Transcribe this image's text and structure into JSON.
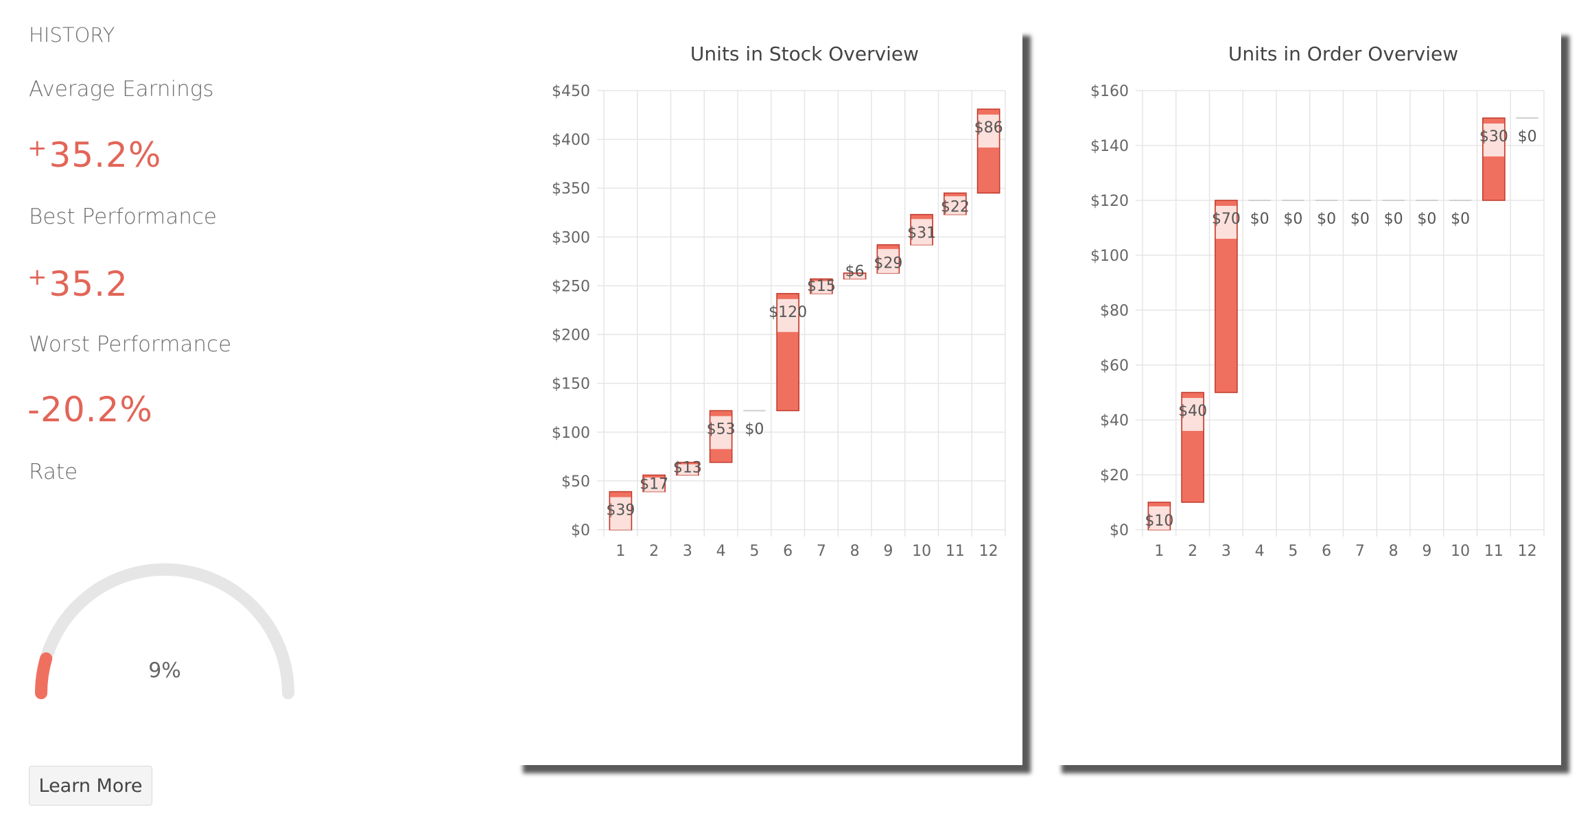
{
  "sidebar": {
    "history_label": "HISTORY",
    "avg_earnings_label": "Average Earnings",
    "avg_earnings_sign": "+",
    "avg_earnings_value": "35.2%",
    "best_performance_label": "Best Performance",
    "best_performance_sign": "+",
    "best_performance_value": "35.2",
    "worst_performance_label": "Worst Performance",
    "worst_performance_value": "-20.2%",
    "rate_label": "Rate",
    "rate_value": 9,
    "rate_text": "9%",
    "learn_more_label": "Learn More"
  },
  "colors": {
    "accent": "#e26558",
    "bar_fill": "#f07060",
    "bar_stroke": "#c0392b",
    "bar_light": "#fbe0dc",
    "gauge_track": "#e6e6e6"
  },
  "chart_data": [
    {
      "type": "bar",
      "subtype": "waterfall",
      "title": "Units in Stock Overview",
      "categories": [
        "1",
        "2",
        "3",
        "4",
        "5",
        "6",
        "7",
        "8",
        "9",
        "10",
        "11",
        "12"
      ],
      "values": [
        39,
        17,
        13,
        53,
        0,
        120,
        15,
        6,
        29,
        31,
        22,
        86
      ],
      "data_labels": [
        "$39",
        "$17",
        "$13",
        "$53",
        "$0",
        "$120",
        "$15",
        "$6",
        "$29",
        "$31",
        "$22",
        "$86"
      ],
      "ylim": [
        0,
        450
      ],
      "yticks": [
        0,
        50,
        100,
        150,
        200,
        250,
        300,
        350,
        400,
        450
      ],
      "ytick_labels": [
        "$0",
        "$50",
        "$100",
        "$150",
        "$200",
        "$250",
        "$300",
        "$350",
        "$400",
        "$450"
      ],
      "grid": true,
      "legend": "none"
    },
    {
      "type": "bar",
      "subtype": "waterfall",
      "title": "Units in Order Overview",
      "categories": [
        "1",
        "2",
        "3",
        "4",
        "5",
        "6",
        "7",
        "8",
        "9",
        "10",
        "11",
        "12"
      ],
      "values": [
        10,
        40,
        70,
        0,
        0,
        0,
        0,
        0,
        0,
        0,
        30,
        0
      ],
      "data_labels": [
        "$10",
        "$40",
        "$70",
        "$0",
        "$0",
        "$0",
        "$0",
        "$0",
        "$0",
        "$0",
        "$30",
        "$0"
      ],
      "ylim": [
        0,
        160
      ],
      "yticks": [
        0,
        20,
        40,
        60,
        80,
        100,
        120,
        140,
        160
      ],
      "ytick_labels": [
        "$0",
        "$20",
        "$40",
        "$60",
        "$80",
        "$100",
        "$120",
        "$140",
        "$160"
      ],
      "grid": true,
      "legend": "none"
    }
  ]
}
